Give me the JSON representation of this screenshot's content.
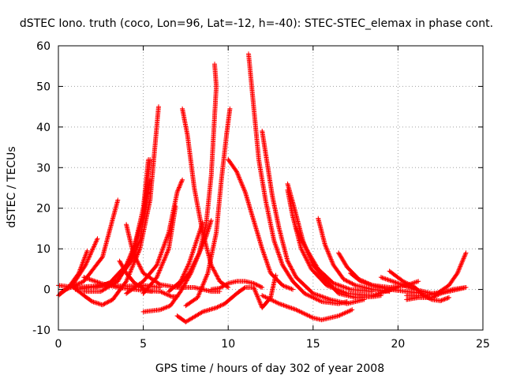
{
  "chart_data": {
    "type": "scatter",
    "title": "dSTEC Iono. truth (coco, Lon=96, Lat=-12, h=-40): STEC-STEC_elemax in phase cont.",
    "xlabel": "GPS time / hours of day 302 of year 2008",
    "ylabel": "dSTEC  / TECUs",
    "xlim": [
      0,
      25
    ],
    "ylim": [
      -10,
      60
    ],
    "xticks": [
      0,
      5,
      10,
      15,
      20,
      25
    ],
    "yticks": [
      -10,
      0,
      10,
      20,
      30,
      40,
      50,
      60
    ],
    "grid": true,
    "marker": "+",
    "color": "#ff0000",
    "series": [
      {
        "points": [
          [
            0.0,
            -1.5
          ],
          [
            0.6,
            0.5
          ],
          [
            1.2,
            4.0
          ],
          [
            1.7,
            9.5
          ]
        ]
      },
      {
        "points": [
          [
            0.1,
            -1.0
          ],
          [
            0.9,
            1.5
          ],
          [
            1.6,
            6.0
          ],
          [
            2.3,
            12.5
          ]
        ]
      },
      {
        "points": [
          [
            0.2,
            -0.5
          ],
          [
            1.5,
            2.0
          ],
          [
            2.6,
            8.0
          ],
          [
            3.5,
            22.0
          ]
        ]
      },
      {
        "points": [
          [
            0.8,
            0.8
          ],
          [
            1.5,
            -1.5
          ],
          [
            2.0,
            -3.0
          ],
          [
            2.6,
            -3.8
          ],
          [
            3.2,
            -2.5
          ],
          [
            4.0,
            2.0
          ],
          [
            4.8,
            10.0
          ],
          [
            5.4,
            22.0
          ],
          [
            5.9,
            45.0
          ]
        ]
      },
      {
        "points": [
          [
            1.5,
            -0.5
          ],
          [
            2.5,
            -0.5
          ],
          [
            3.5,
            2.0
          ],
          [
            4.3,
            8.0
          ],
          [
            5.0,
            18.0
          ],
          [
            5.4,
            32.0
          ]
        ]
      },
      {
        "points": [
          [
            2.0,
            0.5
          ],
          [
            3.0,
            1.5
          ],
          [
            4.0,
            6.0
          ],
          [
            4.5,
            11.0
          ],
          [
            5.0,
            20.0
          ],
          [
            5.3,
            32.0
          ]
        ]
      },
      {
        "points": [
          [
            1.0,
            0.0
          ],
          [
            2.5,
            0.8
          ],
          [
            3.5,
            2.5
          ],
          [
            4.3,
            7.0
          ],
          [
            4.8,
            12.0
          ],
          [
            5.4,
            27.0
          ]
        ]
      },
      {
        "points": [
          [
            3.6,
            7.0
          ],
          [
            4.0,
            4.0
          ],
          [
            4.5,
            1.5
          ],
          [
            5.2,
            -0.3
          ],
          [
            6.0,
            -0.5
          ],
          [
            6.7,
            -1.8
          ],
          [
            7.0,
            -1.8
          ]
        ]
      },
      {
        "points": [
          [
            4.0,
            16.0
          ],
          [
            4.4,
            9.0
          ],
          [
            5.0,
            4.0
          ],
          [
            6.0,
            1.2
          ],
          [
            7.0,
            0.5
          ],
          [
            8.0,
            0.5
          ],
          [
            9.0,
            -0.5
          ],
          [
            9.5,
            -0.5
          ]
        ]
      },
      {
        "points": [
          [
            4.0,
            -1.0
          ],
          [
            5.0,
            2.0
          ],
          [
            5.8,
            6.0
          ],
          [
            6.5,
            14.0
          ],
          [
            7.0,
            24.0
          ],
          [
            7.3,
            27.0
          ]
        ]
      },
      {
        "points": [
          [
            5.0,
            -1.0
          ],
          [
            5.8,
            3.0
          ],
          [
            6.5,
            10.0
          ],
          [
            6.9,
            20.5
          ]
        ]
      },
      {
        "points": [
          [
            5.0,
            -5.5
          ],
          [
            6.0,
            -5.0
          ],
          [
            6.6,
            -4.0
          ],
          [
            7.2,
            -0.5
          ],
          [
            7.8,
            4.0
          ],
          [
            8.3,
            9.0
          ],
          [
            8.7,
            16.0
          ],
          [
            9.0,
            28.0
          ],
          [
            9.3,
            50.0
          ],
          [
            9.2,
            55.5
          ]
        ]
      },
      {
        "points": [
          [
            6.5,
            -0.5
          ],
          [
            7.2,
            2.0
          ],
          [
            7.7,
            6.5
          ],
          [
            8.1,
            11.5
          ],
          [
            8.5,
            16.5
          ]
        ]
      },
      {
        "points": [
          [
            7.0,
            0.5
          ],
          [
            7.7,
            4.0
          ],
          [
            8.3,
            9.0
          ],
          [
            8.7,
            13.0
          ],
          [
            9.0,
            17.0
          ]
        ]
      },
      {
        "points": [
          [
            7.5,
            -4.0
          ],
          [
            8.2,
            -2.0
          ],
          [
            8.8,
            4.0
          ],
          [
            9.3,
            14.0
          ],
          [
            9.6,
            27.0
          ],
          [
            9.9,
            38.0
          ],
          [
            10.1,
            44.5
          ]
        ]
      },
      {
        "points": [
          [
            7.0,
            -6.5
          ],
          [
            7.5,
            -8.0
          ],
          [
            8.5,
            -5.5
          ],
          [
            9.3,
            -4.5
          ],
          [
            9.8,
            -3.5
          ],
          [
            10.5,
            -1.0
          ],
          [
            11.0,
            0.5
          ],
          [
            11.5,
            0.5
          ],
          [
            12.0,
            -4.5
          ],
          [
            12.5,
            -2.0
          ],
          [
            12.8,
            3.5
          ]
        ]
      },
      {
        "points": [
          [
            7.3,
            44.5
          ],
          [
            7.6,
            38.0
          ],
          [
            8.0,
            25.0
          ],
          [
            8.5,
            14.0
          ],
          [
            9.0,
            6.0
          ],
          [
            9.5,
            2.0
          ],
          [
            10.0,
            0.5
          ]
        ]
      },
      {
        "points": [
          [
            10.0,
            32.0
          ],
          [
            10.5,
            29.0
          ],
          [
            11.0,
            24.0
          ],
          [
            11.5,
            17.0
          ],
          [
            12.0,
            10.0
          ],
          [
            12.5,
            4.0
          ],
          [
            13.2,
            1.0
          ],
          [
            13.8,
            0.0
          ]
        ]
      },
      {
        "points": [
          [
            9.0,
            0.0
          ],
          [
            9.5,
            0.3
          ],
          [
            10.0,
            1.5
          ],
          [
            10.5,
            2.0
          ],
          [
            11.0,
            2.0
          ],
          [
            11.5,
            1.5
          ],
          [
            12.0,
            0.5
          ]
        ]
      },
      {
        "points": [
          [
            11.2,
            58.0
          ],
          [
            11.5,
            45.0
          ],
          [
            11.8,
            32.0
          ],
          [
            12.2,
            22.0
          ],
          [
            12.7,
            12.0
          ],
          [
            13.2,
            6.0
          ],
          [
            13.8,
            2.0
          ],
          [
            14.5,
            -1.0
          ],
          [
            15.5,
            -3.0
          ],
          [
            16.5,
            -3.5
          ],
          [
            17.0,
            -3.0
          ]
        ]
      },
      {
        "points": [
          [
            12.0,
            39.0
          ],
          [
            12.3,
            31.0
          ],
          [
            12.6,
            23.0
          ],
          [
            13.0,
            15.0
          ],
          [
            13.5,
            7.0
          ],
          [
            14.0,
            3.0
          ],
          [
            15.0,
            -1.0
          ],
          [
            16.0,
            -2.5
          ],
          [
            17.0,
            -3.5
          ],
          [
            18.0,
            -2.5
          ]
        ]
      },
      {
        "points": [
          [
            13.5,
            26.0
          ],
          [
            13.9,
            20.0
          ],
          [
            14.4,
            12.0
          ],
          [
            15.0,
            6.0
          ],
          [
            15.8,
            2.0
          ],
          [
            16.5,
            -1.0
          ],
          [
            17.5,
            -2.0
          ],
          [
            18.5,
            -1.8
          ],
          [
            19.0,
            -1.5
          ]
        ]
      },
      {
        "points": [
          [
            13.5,
            24.5
          ],
          [
            13.8,
            18.0
          ],
          [
            14.3,
            10.0
          ],
          [
            14.9,
            5.0
          ],
          [
            15.8,
            1.0
          ],
          [
            17.0,
            -1.0
          ],
          [
            18.5,
            -1.5
          ],
          [
            20.0,
            0.5
          ]
        ]
      },
      {
        "points": [
          [
            12.0,
            -1.5
          ],
          [
            13.0,
            -3.5
          ],
          [
            14.0,
            -5.0
          ],
          [
            15.0,
            -7.0
          ],
          [
            15.5,
            -7.5
          ],
          [
            16.5,
            -6.5
          ],
          [
            17.3,
            -5.0
          ]
        ]
      },
      {
        "points": [
          [
            14.0,
            15.0
          ],
          [
            14.6,
            10.0
          ],
          [
            15.3,
            5.0
          ],
          [
            16.2,
            1.5
          ],
          [
            17.2,
            0.0
          ],
          [
            18.5,
            -0.5
          ]
        ]
      },
      {
        "points": [
          [
            15.3,
            17.5
          ],
          [
            15.7,
            11.0
          ],
          [
            16.2,
            6.0
          ],
          [
            16.8,
            2.5
          ],
          [
            17.5,
            1.0
          ],
          [
            18.5,
            0.0
          ],
          [
            19.5,
            -0.5
          ]
        ]
      },
      {
        "points": [
          [
            16.5,
            9.0
          ],
          [
            17.0,
            5.5
          ],
          [
            17.7,
            2.5
          ],
          [
            18.5,
            1.0
          ],
          [
            19.5,
            0.5
          ],
          [
            20.5,
            1.0
          ],
          [
            21.2,
            2.0
          ]
        ]
      },
      {
        "points": [
          [
            17.2,
            4.0
          ],
          [
            17.8,
            2.0
          ],
          [
            18.5,
            1.0
          ],
          [
            19.5,
            0.0
          ],
          [
            20.5,
            -0.5
          ],
          [
            21.5,
            -1.0
          ]
        ]
      },
      {
        "points": [
          [
            19.5,
            4.5
          ],
          [
            20.3,
            2.0
          ],
          [
            21.0,
            0.5
          ],
          [
            21.5,
            -1.5
          ],
          [
            22.0,
            -2.5
          ],
          [
            22.5,
            -2.8
          ],
          [
            23.0,
            -2.0
          ]
        ]
      },
      {
        "points": [
          [
            19.0,
            3.0
          ],
          [
            20.0,
            1.5
          ],
          [
            21.0,
            0.0
          ],
          [
            22.0,
            -1.0
          ],
          [
            23.0,
            -0.5
          ],
          [
            24.0,
            0.5
          ]
        ]
      },
      {
        "points": [
          [
            20.5,
            -1.5
          ],
          [
            21.5,
            -1.5
          ],
          [
            22.3,
            -1.0
          ],
          [
            23.0,
            1.0
          ],
          [
            23.5,
            4.0
          ],
          [
            24.0,
            9.0
          ]
        ]
      },
      {
        "points": [
          [
            20.5,
            -2.5
          ],
          [
            21.2,
            -2.0
          ],
          [
            22.0,
            -2.0
          ],
          [
            22.5,
            -1.0
          ],
          [
            23.2,
            0.0
          ],
          [
            24.0,
            0.5
          ]
        ]
      },
      {
        "points": [
          [
            0.0,
            1.0
          ],
          [
            1.0,
            0.5
          ],
          [
            2.0,
            0.8
          ],
          [
            3.0,
            1.0
          ],
          [
            4.0,
            0.8
          ],
          [
            5.0,
            1.0
          ],
          [
            6.0,
            0.5
          ]
        ]
      },
      {
        "points": [
          [
            1.5,
            3.0
          ],
          [
            2.5,
            1.5
          ],
          [
            3.5,
            0.5
          ],
          [
            4.5,
            0.0
          ],
          [
            5.5,
            -0.5
          ]
        ]
      }
    ]
  }
}
